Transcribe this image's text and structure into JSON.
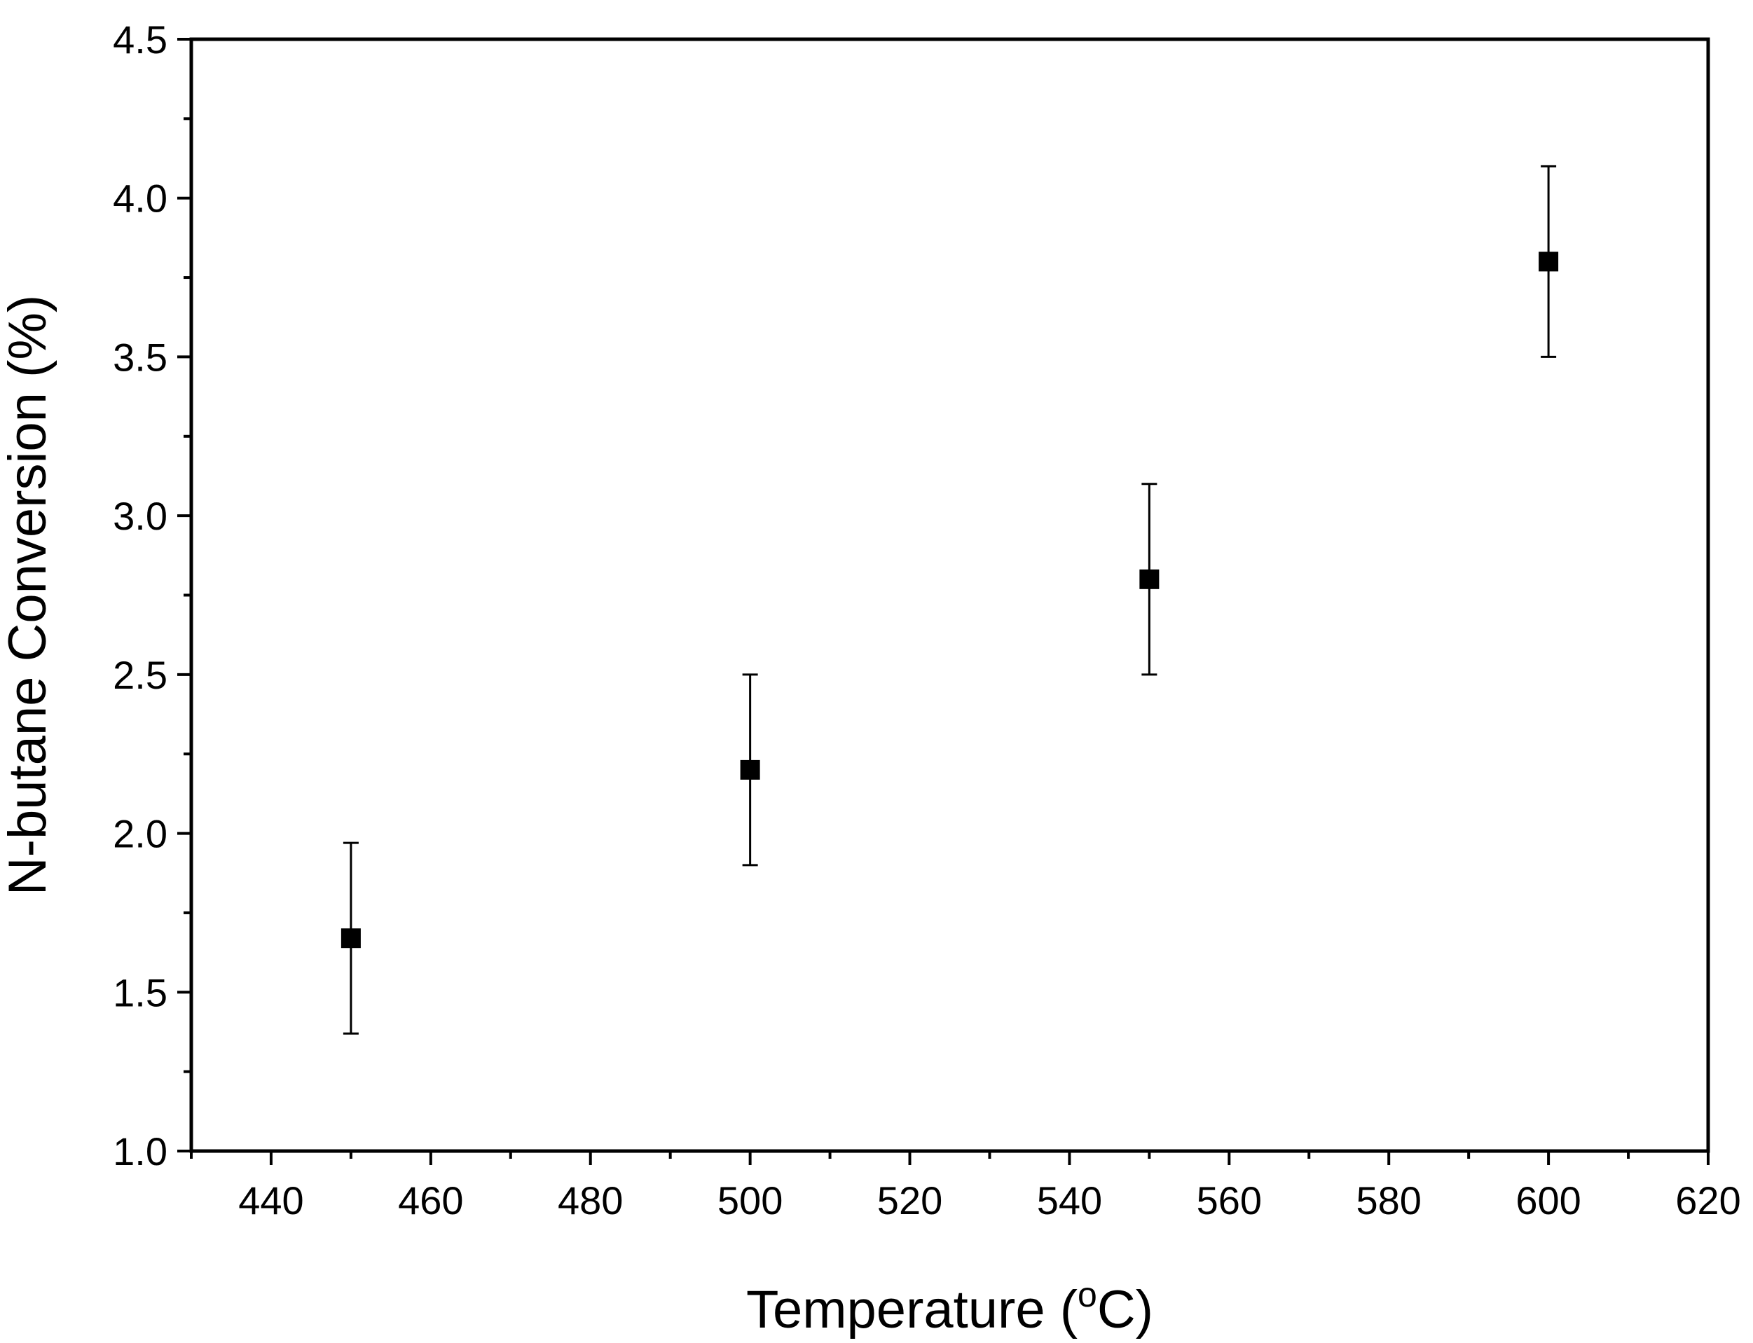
{
  "chart_data": {
    "type": "scatter",
    "title": "",
    "xlabel_main": "Temperature (",
    "xlabel_sup": "o",
    "xlabel_unit": "C)",
    "ylabel": "N-butane Conversion (%)",
    "xlim": [
      430,
      620
    ],
    "ylim": [
      1.0,
      4.5
    ],
    "x_ticks": [
      440,
      460,
      480,
      500,
      520,
      540,
      560,
      580,
      600,
      620
    ],
    "x_tick_labels": [
      "440",
      "460",
      "480",
      "500",
      "520",
      "540",
      "560",
      "580",
      "600",
      "620"
    ],
    "y_ticks": [
      1.0,
      1.5,
      2.0,
      2.5,
      3.0,
      3.5,
      4.0,
      4.5
    ],
    "y_tick_labels": [
      "1.0",
      "1.5",
      "2.0",
      "2.5",
      "3.0",
      "3.5",
      "4.0",
      "4.5"
    ],
    "x_minor_ticks": [
      430,
      450,
      470,
      490,
      510,
      530,
      550,
      570,
      590,
      610
    ],
    "y_minor_ticks": [
      1.25,
      1.75,
      2.25,
      2.75,
      3.25,
      3.75,
      4.25
    ],
    "grid": false,
    "legend": "none",
    "marker": "square",
    "marker_color": "#000000",
    "series": [
      {
        "x": [
          450,
          500,
          550,
          600
        ],
        "y": [
          1.67,
          2.2,
          2.8,
          3.8
        ],
        "error_lower": [
          1.37,
          1.9,
          2.5,
          3.5
        ],
        "error_upper": [
          1.97,
          2.5,
          3.1,
          4.1
        ]
      }
    ]
  }
}
